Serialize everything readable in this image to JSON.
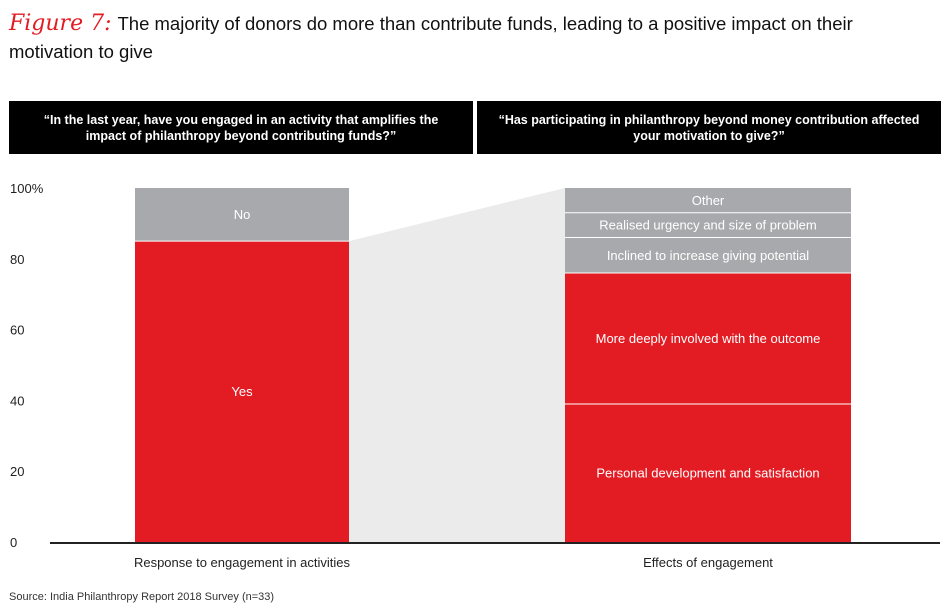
{
  "figure_label": "Figure 7:",
  "title": "The majority of donors do more than contribute funds, leading to a positive impact on their motivation to give",
  "headers": {
    "left": "“In the last year, have you engaged in an activity that amplifies the impact of philanthropy beyond contributing funds?”",
    "right": "“Has participating in philanthropy beyond money contribution affected your motivation to give?”"
  },
  "source": "Source: India Philanthropy Report 2018 Survey (n=33)",
  "colors": {
    "red": "#e31c24",
    "gray": "#a7a9ac",
    "band": "#ebebeb",
    "axis": "#222222"
  },
  "chart_data": {
    "type": "bar",
    "stacked": true,
    "ylim": [
      0,
      100
    ],
    "yticks": [
      "0",
      "20",
      "40",
      "60",
      "80",
      "100%"
    ],
    "ytick_values": [
      0,
      20,
      40,
      60,
      80,
      100
    ],
    "categories": [
      "Response to engagement in activities",
      "Effects of engagement"
    ],
    "bars": [
      {
        "category": "Response to engagement in activities",
        "segments": [
          {
            "label": "Yes",
            "value": 85,
            "color": "#e31c24"
          },
          {
            "label": "No",
            "value": 15,
            "color": "#a7a9ac"
          }
        ]
      },
      {
        "category": "Effects of engagement",
        "segments": [
          {
            "label": "Personal development and satisfaction",
            "value": 39,
            "color": "#e31c24"
          },
          {
            "label": "More deeply involved with the outcome",
            "value": 37,
            "color": "#e31c24"
          },
          {
            "label": "Inclined to increase giving potential",
            "value": 10,
            "color": "#a7a9ac"
          },
          {
            "label": "Realised urgency and size of problem",
            "value": 7,
            "color": "#a7a9ac"
          },
          {
            "label": "Other",
            "value": 7,
            "color": "#a7a9ac"
          }
        ]
      }
    ]
  }
}
